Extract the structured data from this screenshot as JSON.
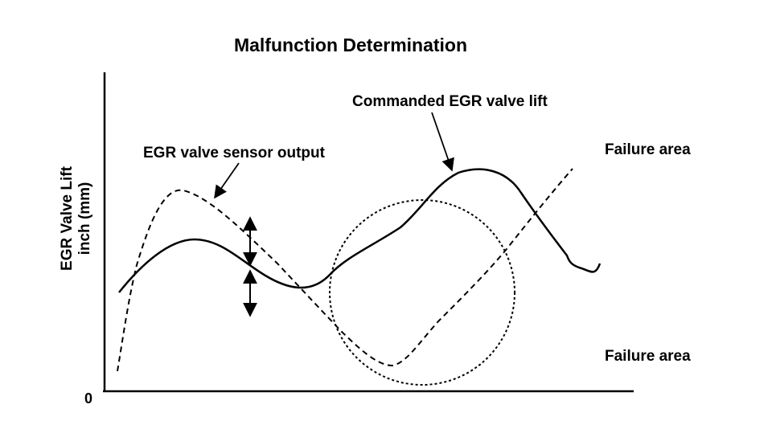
{
  "title": "Malfunction Determination",
  "y_axis": {
    "label_line1": "EGR Valve Lift",
    "label_line2": "inch (mm)",
    "origin_label": "0"
  },
  "curves": {
    "commanded": {
      "label": "Commanded EGR valve lift",
      "style": "solid"
    },
    "sensor": {
      "label": "EGR valve sensor output",
      "style": "dashed"
    }
  },
  "failure_area_upper": "Failure area",
  "failure_area_lower": "Failure area",
  "colors": {
    "ink": "#000000",
    "background": "#ffffff"
  }
}
